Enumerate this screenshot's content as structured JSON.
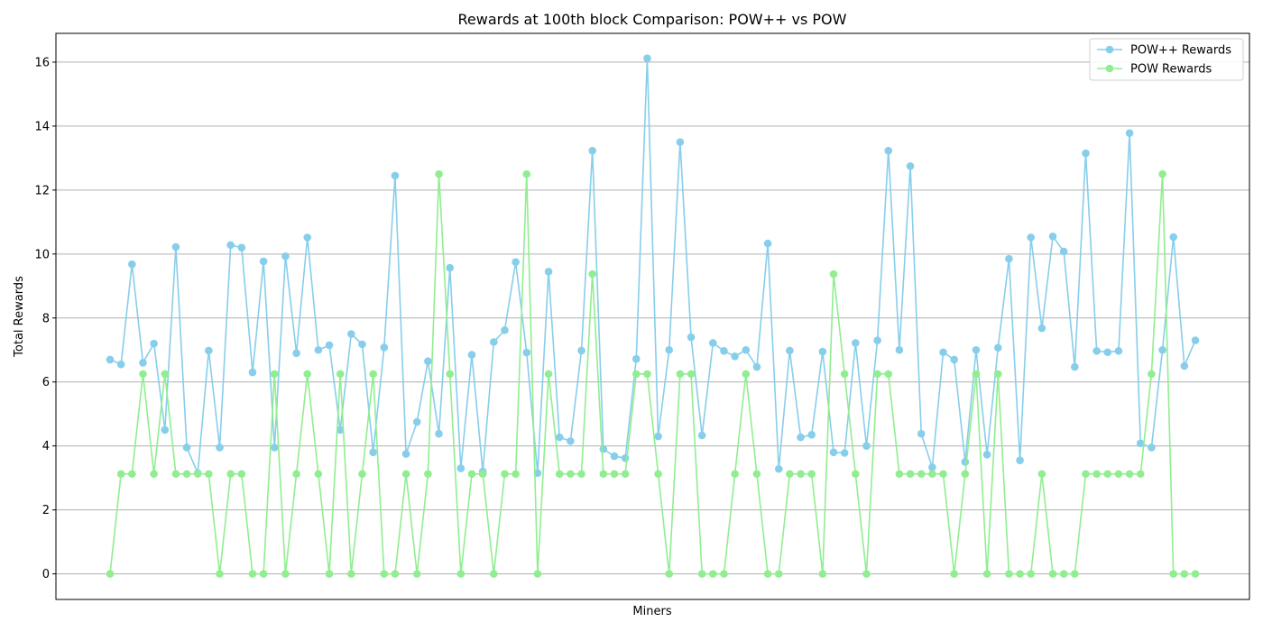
{
  "chart_data": {
    "type": "line",
    "title": "Rewards at 100th block Comparison: POW++ vs POW",
    "xlabel": "Miners",
    "ylabel": "Total Rewards",
    "ylim": [
      -0.8,
      16.9
    ],
    "yticks": [
      0,
      2,
      4,
      6,
      8,
      10,
      12,
      14,
      16
    ],
    "grid": "y",
    "legend_position": "top-right",
    "series": [
      {
        "name": "POW++ Rewards",
        "color": "#87ceeb",
        "values": [
          6.7,
          6.55,
          9.68,
          6.6,
          7.2,
          4.5,
          10.22,
          3.95,
          3.15,
          6.98,
          3.95,
          10.28,
          10.2,
          6.3,
          9.77,
          3.95,
          9.93,
          6.9,
          10.52,
          7.0,
          7.15,
          4.5,
          7.5,
          7.18,
          3.8,
          7.08,
          12.45,
          3.75,
          4.75,
          6.65,
          4.38,
          9.57,
          3.3,
          6.85,
          3.2,
          7.25,
          7.62,
          9.75,
          6.92,
          3.15,
          9.45,
          4.27,
          4.15,
          6.98,
          13.23,
          3.9,
          3.68,
          3.62,
          6.72,
          16.12,
          4.3,
          7.0,
          13.5,
          7.4,
          4.33,
          7.22,
          6.97,
          6.8,
          7.0,
          6.47,
          10.33,
          3.28,
          6.98,
          4.27,
          4.35,
          6.95,
          3.8,
          3.78,
          7.22,
          4.0,
          7.3,
          13.23,
          7.0,
          12.75,
          4.38,
          3.33,
          6.93,
          6.7,
          3.5,
          7.0,
          3.73,
          7.07,
          9.85,
          3.55,
          10.52,
          7.68,
          10.55,
          10.08,
          6.47,
          13.15,
          6.97,
          6.93,
          6.97,
          13.78,
          4.08,
          3.95,
          7.0,
          10.53,
          6.5,
          7.3
        ]
      },
      {
        "name": "POW Rewards",
        "color": "#90ee90",
        "values": [
          0,
          3.125,
          3.125,
          6.25,
          3.125,
          6.25,
          3.125,
          3.125,
          3.125,
          3.125,
          0,
          3.125,
          3.125,
          0,
          0,
          6.25,
          0,
          3.125,
          6.25,
          3.125,
          0,
          6.25,
          0,
          3.125,
          6.25,
          0,
          0,
          3.125,
          0,
          3.125,
          12.5,
          6.25,
          0,
          3.125,
          3.125,
          0,
          3.125,
          3.125,
          12.5,
          0,
          6.25,
          3.125,
          3.125,
          3.125,
          9.375,
          3.125,
          3.125,
          3.125,
          6.25,
          6.25,
          3.125,
          0,
          6.25,
          6.25,
          0,
          0,
          0,
          3.125,
          6.25,
          3.125,
          0,
          0,
          3.125,
          3.125,
          3.125,
          0,
          9.375,
          6.25,
          3.125,
          0,
          6.25,
          6.25,
          3.125,
          3.125,
          3.125,
          3.125,
          3.125,
          0,
          3.125,
          6.25,
          0,
          6.25,
          0,
          0,
          0,
          3.125,
          0,
          0,
          0,
          3.125,
          3.125,
          3.125,
          3.125,
          3.125,
          3.125,
          6.25,
          12.5,
          0,
          0,
          0
        ]
      }
    ]
  }
}
